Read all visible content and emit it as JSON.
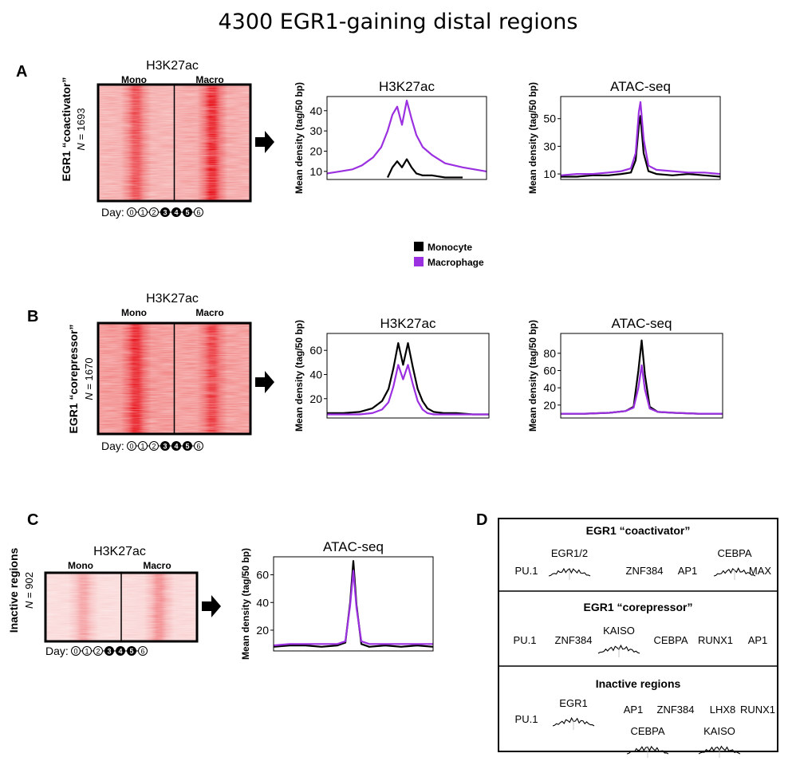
{
  "figure_title": "4300 EGR1-gaining distal regions",
  "colors": {
    "monocyte": "#000000",
    "macrophage": "#9b30e0",
    "heatmap_base": "#f7c6c4",
    "heatmap_band": "#e8141c"
  },
  "legend": {
    "items": [
      {
        "label": "Monocyte",
        "color": "#000000"
      },
      {
        "label": "Macrophage",
        "color": "#9b30e0"
      }
    ]
  },
  "days": [
    "0",
    "1",
    "2",
    "3",
    "4",
    "5",
    "6"
  ],
  "filled_days": [
    3,
    4,
    5
  ],
  "panels": [
    {
      "letter": "A",
      "group_label": "EGR1 “coactivator”",
      "n_prefix": "N",
      "n_text": " = 1693",
      "heatmap": {
        "title": "H3K27ac",
        "col_labels": [
          "Mono",
          "Macro"
        ],
        "day_prefix": "Day:",
        "intensity": "medium",
        "mono_strength": 0.75,
        "macro_strength": 1.0
      }
    },
    {
      "letter": "B",
      "group_label": "EGR1 “corepressor”",
      "n_prefix": "N",
      "n_text": " = 1670",
      "heatmap": {
        "title": "H3K27ac",
        "col_labels": [
          "Mono",
          "Macro"
        ],
        "day_prefix": "Day:",
        "intensity": "high",
        "mono_strength": 1.0,
        "macro_strength": 0.8
      }
    },
    {
      "letter": "C",
      "group_label": "Inactive regions",
      "n_prefix": "N",
      "n_text": " = 902",
      "heatmap": {
        "title": "H3K27ac",
        "col_labels": [
          "Mono",
          "Macro"
        ],
        "day_prefix": "Day:",
        "intensity": "low",
        "mono_strength": 0.35,
        "macro_strength": 0.45
      }
    }
  ],
  "chart_data": [
    {
      "panel": "A",
      "type": "line",
      "title": "H3K27ac",
      "ylabel": "Mean density (tag/50 bp)",
      "yticks": [
        10,
        20,
        30,
        40
      ],
      "ylim": [
        6,
        47
      ],
      "series": [
        {
          "name": "Monocyte",
          "x": [
            0,
            0.08,
            0.16,
            0.22,
            0.29,
            0.34,
            0.38,
            0.41,
            0.44,
            0.47,
            0.5,
            0.53,
            0.56,
            0.6,
            0.66,
            0.74,
            0.85,
            1.0
          ],
          "y": [
            null,
            null,
            null,
            null,
            null,
            null,
            7,
            12,
            15,
            12,
            16,
            12,
            9,
            8,
            8,
            7,
            7,
            null
          ]
        },
        {
          "name": "Macrophage",
          "x": [
            0,
            0.08,
            0.16,
            0.22,
            0.29,
            0.34,
            0.38,
            0.41,
            0.44,
            0.47,
            0.5,
            0.53,
            0.56,
            0.6,
            0.66,
            0.74,
            0.85,
            1.0
          ],
          "y": [
            9,
            10,
            11,
            13,
            17,
            22,
            30,
            38,
            42,
            33,
            45,
            36,
            28,
            22,
            18,
            14,
            12,
            10
          ]
        }
      ]
    },
    {
      "panel": "A",
      "type": "line",
      "title": "ATAC-seq",
      "ylabel": "Mean density (tag/50 bp)",
      "yticks": [
        10,
        30,
        50
      ],
      "ylim": [
        6,
        66
      ],
      "series": [
        {
          "name": "Monocyte",
          "x": [
            0,
            0.1,
            0.2,
            0.3,
            0.38,
            0.44,
            0.47,
            0.49,
            0.5,
            0.52,
            0.55,
            0.6,
            0.7,
            0.8,
            0.9,
            1.0
          ],
          "y": [
            8,
            8,
            9,
            9,
            10,
            11,
            20,
            45,
            52,
            25,
            12,
            10,
            9,
            10,
            9,
            8
          ]
        },
        {
          "name": "Macrophage",
          "x": [
            0,
            0.1,
            0.2,
            0.3,
            0.38,
            0.44,
            0.47,
            0.49,
            0.5,
            0.52,
            0.55,
            0.6,
            0.7,
            0.8,
            0.9,
            1.0
          ],
          "y": [
            9,
            10,
            10,
            11,
            12,
            14,
            25,
            55,
            62,
            35,
            16,
            13,
            12,
            11,
            11,
            10
          ]
        }
      ]
    },
    {
      "panel": "B",
      "type": "line",
      "title": "H3K27ac",
      "ylabel": "Mean density (tag/50 bp)",
      "yticks": [
        20,
        40,
        60
      ],
      "ylim": [
        4,
        74
      ],
      "series": [
        {
          "name": "Monocyte",
          "x": [
            0,
            0.1,
            0.2,
            0.28,
            0.34,
            0.38,
            0.41,
            0.44,
            0.47,
            0.5,
            0.53,
            0.56,
            0.59,
            0.62,
            0.66,
            0.72,
            0.8,
            0.9,
            1.0
          ],
          "y": [
            8,
            8,
            9,
            12,
            18,
            28,
            45,
            66,
            48,
            66,
            46,
            28,
            18,
            12,
            9,
            8,
            8,
            7,
            7
          ]
        },
        {
          "name": "Macrophage",
          "x": [
            0,
            0.1,
            0.2,
            0.28,
            0.34,
            0.38,
            0.41,
            0.44,
            0.47,
            0.5,
            0.53,
            0.56,
            0.59,
            0.62,
            0.66,
            0.72,
            0.8,
            0.9,
            1.0
          ],
          "y": [
            7,
            7,
            7,
            8,
            11,
            17,
            30,
            48,
            36,
            48,
            32,
            18,
            11,
            8,
            7,
            7,
            7,
            7,
            7
          ]
        }
      ]
    },
    {
      "panel": "B",
      "type": "line",
      "title": "ATAC-seq",
      "ylabel": "Mean density (tag/50 bp)",
      "yticks": [
        20,
        40,
        60,
        80
      ],
      "ylim": [
        5,
        103
      ],
      "series": [
        {
          "name": "Monocyte",
          "x": [
            0,
            0.15,
            0.3,
            0.4,
            0.45,
            0.48,
            0.5,
            0.52,
            0.55,
            0.6,
            0.7,
            0.85,
            1.0
          ],
          "y": [
            10,
            10,
            11,
            13,
            18,
            60,
            95,
            55,
            18,
            12,
            11,
            10,
            10
          ]
        },
        {
          "name": "Macrophage",
          "x": [
            0,
            0.15,
            0.3,
            0.4,
            0.45,
            0.48,
            0.5,
            0.52,
            0.55,
            0.6,
            0.7,
            0.85,
            1.0
          ],
          "y": [
            10,
            10,
            11,
            13,
            17,
            40,
            66,
            38,
            16,
            12,
            11,
            10,
            10
          ]
        }
      ]
    },
    {
      "panel": "C",
      "type": "line",
      "title": "ATAC-seq",
      "ylabel": "Mean density (tag/50 bp)",
      "yticks": [
        20,
        40,
        60
      ],
      "ylim": [
        5,
        73
      ],
      "series": [
        {
          "name": "Monocyte",
          "x": [
            0,
            0.1,
            0.2,
            0.3,
            0.4,
            0.45,
            0.48,
            0.5,
            0.52,
            0.55,
            0.6,
            0.7,
            0.8,
            0.9,
            1.0
          ],
          "y": [
            8,
            9,
            9,
            8,
            9,
            11,
            40,
            70,
            38,
            10,
            8,
            9,
            8,
            9,
            8
          ]
        },
        {
          "name": "Macrophage",
          "x": [
            0,
            0.1,
            0.2,
            0.3,
            0.4,
            0.45,
            0.48,
            0.5,
            0.52,
            0.55,
            0.6,
            0.7,
            0.8,
            0.9,
            1.0
          ],
          "y": [
            9,
            10,
            10,
            10,
            10,
            12,
            38,
            63,
            36,
            12,
            10,
            10,
            10,
            10,
            10
          ]
        }
      ]
    }
  ],
  "motif_panel": {
    "letter": "D",
    "sections": [
      {
        "title": "EGR1 “coactivator”",
        "motifs": [
          {
            "label": "PU.1",
            "logo": false
          },
          {
            "label": "EGR1/2",
            "logo": true
          },
          {
            "label": "ZNF384",
            "logo": false
          },
          {
            "label": "AP1",
            "logo": false
          },
          {
            "label": "CEBPA",
            "logo": true
          },
          {
            "label": "MAX",
            "logo": false
          }
        ]
      },
      {
        "title": "EGR1 “corepressor”",
        "motifs": [
          {
            "label": "PU.1",
            "logo": false
          },
          {
            "label": "ZNF384",
            "logo": false
          },
          {
            "label": "KAISO",
            "logo": true
          },
          {
            "label": "CEBPA",
            "logo": false
          },
          {
            "label": "RUNX1",
            "logo": false
          },
          {
            "label": "AP1",
            "logo": false
          }
        ]
      },
      {
        "title": "Inactive regions",
        "motifs": [
          {
            "label": "PU.1",
            "logo": false
          },
          {
            "label": "EGR1",
            "logo": true
          },
          {
            "label": "AP1",
            "logo": false
          },
          {
            "label": "ZNF384",
            "logo": false
          },
          {
            "label": "LHX8",
            "logo": false
          },
          {
            "label": "RUNX1",
            "logo": false
          },
          {
            "label": "CEBPA",
            "logo": true
          },
          {
            "label": "KAISO",
            "logo": true
          }
        ]
      }
    ]
  }
}
